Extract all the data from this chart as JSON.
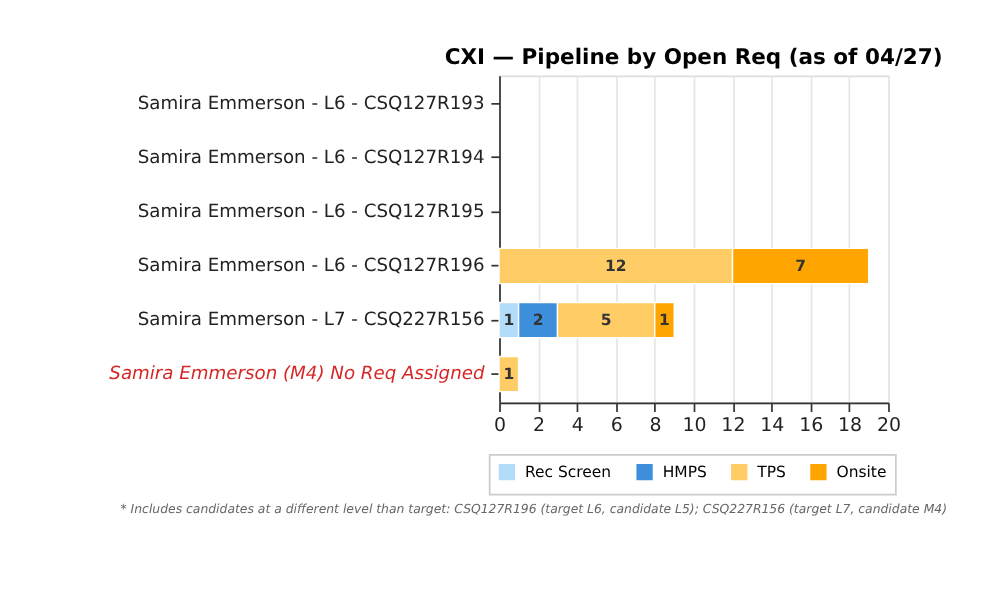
{
  "chart_data": {
    "type": "bar",
    "orientation": "horizontal",
    "stacked": true,
    "title": "CXI — Pipeline by Open Req (as of 04/27)",
    "categories": [
      "Samira Emmerson - L6 - CSQ127R193",
      "Samira Emmerson - L6 - CSQ127R194",
      "Samira Emmerson - L6 - CSQ127R195",
      "Samira Emmerson - L6 - CSQ127R196",
      "Samira Emmerson - L7 - CSQ227R156",
      "Samira Emmerson (M4) No Req Assigned"
    ],
    "series": [
      {
        "name": "Rec Screen",
        "color": "#b3dcfa",
        "values": [
          null,
          null,
          null,
          null,
          1,
          null
        ]
      },
      {
        "name": "HMPS",
        "color": "#3d8fdc",
        "values": [
          null,
          null,
          null,
          null,
          2,
          null
        ]
      },
      {
        "name": "TPS",
        "color": "#ffcc66",
        "values": [
          null,
          null,
          null,
          12,
          5,
          1
        ]
      },
      {
        "name": "Onsite",
        "color": "#ffa500",
        "values": [
          null,
          null,
          null,
          7,
          1,
          null
        ]
      }
    ],
    "xlim": [
      0,
      20
    ],
    "xticks": [
      0,
      2,
      4,
      6,
      8,
      10,
      12,
      14,
      16,
      18,
      20
    ],
    "grid": "x",
    "legend": "bottom right",
    "data_labels": true,
    "annotations": [
      "* Includes candidates at a different level than target: CSQ127R196 (target L6, candidate L5); CSQ227R156 (target L7, candidate M4)"
    ]
  }
}
